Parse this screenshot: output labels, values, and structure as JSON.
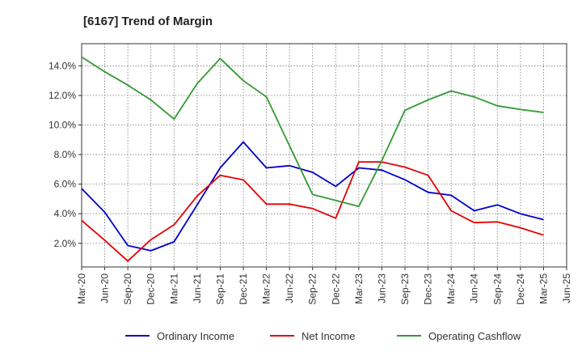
{
  "chart_data": {
    "type": "line",
    "title": "[6167]  Trend of Margin",
    "xlabel": "",
    "ylabel": "",
    "x": [
      "Mar-20",
      "Jun-20",
      "Sep-20",
      "Dec-20",
      "Mar-21",
      "Jun-21",
      "Sep-21",
      "Dec-21",
      "Mar-22",
      "Jun-22",
      "Sep-22",
      "Dec-22",
      "Mar-23",
      "Jun-23",
      "Sep-23",
      "Dec-23",
      "Mar-24",
      "Jun-24",
      "Sep-24",
      "Dec-24",
      "Mar-25",
      "Jun-25"
    ],
    "yticks": [
      "2.0%",
      "4.0%",
      "6.0%",
      "8.0%",
      "10.0%",
      "12.0%",
      "14.0%"
    ],
    "ytick_values": [
      2,
      4,
      6,
      8,
      10,
      12,
      14
    ],
    "ylim": [
      0.4,
      15.5
    ],
    "grid": true,
    "legend_position": "bottom",
    "series": [
      {
        "name": "Ordinary Income",
        "color": "#0000cc",
        "values": [
          5.7,
          4.1,
          1.85,
          1.5,
          2.1,
          4.6,
          7.1,
          8.85,
          7.1,
          7.25,
          6.8,
          5.85,
          7.1,
          6.95,
          6.3,
          5.45,
          5.25,
          4.2,
          4.6,
          4.0,
          3.6,
          null
        ]
      },
      {
        "name": "Net Income",
        "color": "#e60000",
        "values": [
          3.55,
          2.2,
          0.8,
          2.25,
          3.25,
          5.2,
          6.6,
          6.3,
          4.65,
          4.65,
          4.35,
          3.7,
          7.5,
          7.5,
          7.15,
          6.6,
          4.2,
          3.4,
          3.45,
          3.05,
          2.55,
          null
        ]
      },
      {
        "name": "Operating Cashflow",
        "color": "#339933",
        "values": [
          14.6,
          13.6,
          12.7,
          11.7,
          10.4,
          12.8,
          14.5,
          13.0,
          11.9,
          8.6,
          5.3,
          4.9,
          4.5,
          7.6,
          11.0,
          11.7,
          12.3,
          11.9,
          11.3,
          11.05,
          10.85,
          null
        ]
      }
    ]
  }
}
